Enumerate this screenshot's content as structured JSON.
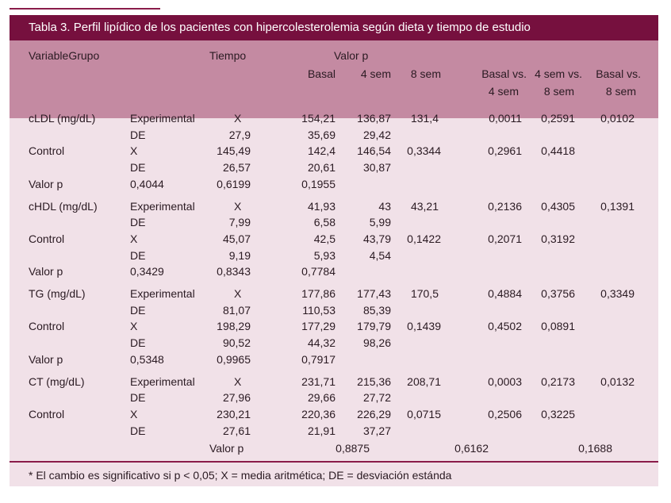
{
  "title": "Tabla 3. Perfil lipídico de los pacientes con hipercolesterolemia según dieta y tiempo de estudio",
  "header": {
    "variable_grupo": "VariableGrupo",
    "tiempo": "Tiempo",
    "valor_p": "Valor p",
    "basal": "Basal",
    "sem4": "4 sem",
    "sem8": "8 sem",
    "basal_vs_4_l1": "Basal vs.",
    "basal_vs_4_l2": "4 sem",
    "sem4_vs_8_l1": "4 sem vs.",
    "sem4_vs_8_l2": "8 sem",
    "basal_vs_8_l1": "Basal vs.",
    "basal_vs_8_l2": "8 sem"
  },
  "cldl": {
    "label": "cLDL (mg/dL)",
    "exp_group": "Experimental",
    "exp_stat": "X",
    "exp_b": "154,21",
    "exp_4": "136,87",
    "exp_8": "131,4",
    "exp_p1": "0,0011",
    "exp_p2": "0,2591",
    "exp_p3": "0,0102",
    "exp_de": "DE",
    "exp_de_t": "27,9",
    "exp_de_b": "35,69",
    "exp_de_4": "29,42",
    "ctrl_label": "Control",
    "ctrl_stat": "X",
    "ctrl_t": "145,49",
    "ctrl_b": "142,4",
    "ctrl_4": "146,54",
    "ctrl_8": "0,3344",
    "ctrl_p1": "0,2961",
    "ctrl_p2": "0,4418",
    "ctrl_de": "DE",
    "ctrl_de_t": "26,57",
    "ctrl_de_b": "20,61",
    "ctrl_de_4": "30,87",
    "vp_label": "Valor p",
    "vp_g": "0,4044",
    "vp_t": "0,6199",
    "vp_b": "0,1955"
  },
  "chdl": {
    "label": "cHDL (mg/dL)",
    "exp_group": "Experimental",
    "exp_stat": "X",
    "exp_b": "41,93",
    "exp_4": "43",
    "exp_8": "43,21",
    "exp_p1": "0,2136",
    "exp_p2": "0,4305",
    "exp_p3": "0,1391",
    "exp_de": "DE",
    "exp_de_t": "7,99",
    "exp_de_b": "6,58",
    "exp_de_4": "5,99",
    "ctrl_label": "Control",
    "ctrl_stat": "X",
    "ctrl_t": "45,07",
    "ctrl_b": "42,5",
    "ctrl_4": "43,79",
    "ctrl_8": "0,1422",
    "ctrl_p1": "0,2071",
    "ctrl_p2": "0,3192",
    "ctrl_de": "DE",
    "ctrl_de_t": "9,19",
    "ctrl_de_b": "5,93",
    "ctrl_de_4": "4,54",
    "vp_label": "Valor p",
    "vp_g": "0,3429",
    "vp_t": "0,8343",
    "vp_b": "0,7784"
  },
  "tg": {
    "label": "TG (mg/dL)",
    "exp_group": "Experimental",
    "exp_stat": "X",
    "exp_b": "177,86",
    "exp_4": "177,43",
    "exp_8": "170,5",
    "exp_p1": "0,4884",
    "exp_p2": "0,3756",
    "exp_p3": "0,3349",
    "exp_de": "DE",
    "exp_de_t": "81,07",
    "exp_de_b": "110,53",
    "exp_de_4": "85,39",
    "ctrl_label": "Control",
    "ctrl_stat": "X",
    "ctrl_t": "198,29",
    "ctrl_b": "177,29",
    "ctrl_4": "179,79",
    "ctrl_8": "0,1439",
    "ctrl_p1": "0,4502",
    "ctrl_p2": "0,0891",
    "ctrl_de": "DE",
    "ctrl_de_t": "90,52",
    "ctrl_de_b": "44,32",
    "ctrl_de_4": "98,26",
    "vp_label": "Valor p",
    "vp_g": "0,5348",
    "vp_t": "0,9965",
    "vp_b": "0,7917"
  },
  "ct": {
    "label": "CT (mg/dL)",
    "exp_group": "Experimental",
    "exp_stat": "X",
    "exp_b": "231,71",
    "exp_4": "215,36",
    "exp_8": "208,71",
    "exp_p1": "0,0003",
    "exp_p2": "0,2173",
    "exp_p3": "0,0132",
    "exp_de": "DE",
    "exp_de_t": "27,96",
    "exp_de_b": "29,66",
    "exp_de_4": "27,72",
    "ctrl_label": "Control",
    "ctrl_stat": "X",
    "ctrl_t": "230,21",
    "ctrl_b": "220,36",
    "ctrl_4": "226,29",
    "ctrl_8": "0,0715",
    "ctrl_p1": "0,2506",
    "ctrl_p2": "0,3225",
    "ctrl_de": "DE",
    "ctrl_de_t": "27,61",
    "ctrl_de_b": "21,91",
    "ctrl_de_4": "37,27",
    "vp_label": "Valor p",
    "vp_1": "0,8875",
    "vp_2": "0,6162",
    "vp_3": "0,1688"
  },
  "footnote": "* El cambio es significativo si p < 0,05; X = media aritmética; DE = desviación estánda",
  "colors": {
    "title_bg": "#76103e",
    "header_bg": "#c48aa2",
    "body_bg": "#f1e1e8",
    "rule": "#8a1c4a"
  }
}
